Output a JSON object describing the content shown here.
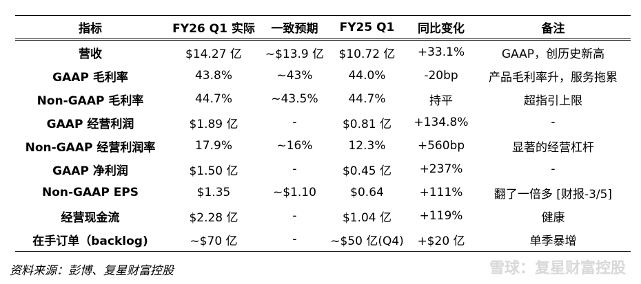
{
  "table": {
    "header": [
      "指标",
      "FY26 Q1 实际",
      "一致预期",
      "FY25 Q1",
      "同比变化",
      "备注"
    ],
    "rows": [
      [
        "营收",
        "$14.27 亿",
        "~$13.9 亿",
        "$10.72 亿",
        "+33.1%",
        "GAAP，创历史新高"
      ],
      [
        "GAAP 毛利率",
        "43.8%",
        "~43%",
        "44.0%",
        "-20bp",
        "产品毛利率升，服务拖累"
      ],
      [
        "Non-GAAP 毛利率",
        "44.7%",
        "~43.5%",
        "44.7%",
        "持平",
        "超指引上限"
      ],
      [
        "GAAP 经营利润",
        "$1.89 亿",
        "-",
        "$0.81 亿",
        "+134.8%",
        "-"
      ],
      [
        "Non-GAAP 经营利润率",
        "17.9%",
        "~16%",
        "12.3%",
        "+560bp",
        "显著的经营杠杆"
      ],
      [
        "GAAP 净利润",
        "$1.50 亿",
        "-",
        "$0.45 亿",
        "+237%",
        "-"
      ],
      [
        "Non-GAAP EPS",
        "$1.35",
        "~$1.10",
        "$0.64",
        "+111%",
        "翻了一倍多 [财报-3/5]"
      ],
      [
        "经营现金流",
        "$2.28 亿",
        "-",
        "$1.04 亿",
        "+119%",
        "健康"
      ],
      [
        "在手订单（backlog)",
        "~$70 亿",
        "-",
        "~$50 亿(Q4)",
        "+$20 亿",
        "单季暴增"
      ]
    ]
  },
  "source": "资料来源：彭博、复星财富控股",
  "watermark": "雪球：复星财富控股"
}
